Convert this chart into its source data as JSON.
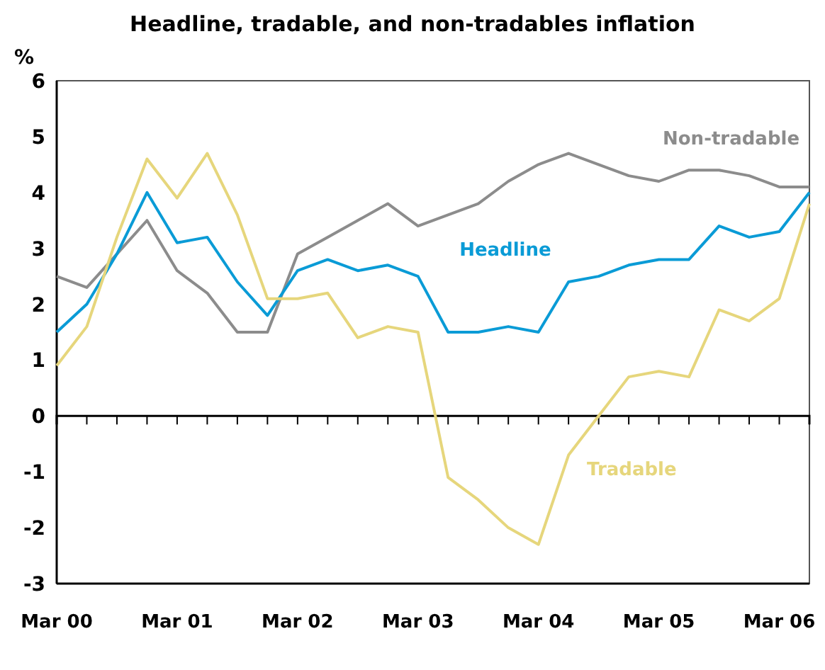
{
  "chart_data": {
    "type": "line",
    "title": "Headline, tradable, and non-tradables inflation",
    "ylabel": "%",
    "categories": [
      "Mar 00",
      null,
      null,
      null,
      "Mar 01",
      null,
      null,
      null,
      "Mar 02",
      null,
      null,
      null,
      "Mar 03",
      null,
      null,
      null,
      "Mar 04",
      null,
      null,
      null,
      "Mar 05",
      null,
      null,
      null,
      "Mar 06",
      null
    ],
    "series": [
      {
        "name": "Non-tradable",
        "color": "#8c8c8c",
        "values": [
          2.5,
          2.3,
          2.9,
          3.5,
          2.6,
          2.2,
          1.5,
          1.5,
          2.9,
          3.2,
          3.5,
          3.8,
          3.4,
          3.6,
          3.8,
          4.2,
          4.5,
          4.7,
          4.5,
          4.3,
          4.2,
          4.4,
          4.4,
          4.3,
          4.1,
          4.1
        ]
      },
      {
        "name": "Headline",
        "color": "#0a9bd6",
        "values": [
          1.5,
          2.0,
          2.9,
          4.0,
          3.1,
          3.2,
          2.4,
          1.8,
          2.6,
          2.8,
          2.6,
          2.7,
          2.5,
          1.5,
          1.5,
          1.6,
          1.5,
          2.4,
          2.5,
          2.7,
          2.8,
          2.8,
          3.4,
          3.2,
          3.3,
          4.0
        ]
      },
      {
        "name": "Tradable",
        "color": "#e6d67c",
        "values": [
          0.9,
          1.6,
          3.2,
          4.6,
          3.9,
          4.7,
          3.6,
          2.1,
          2.1,
          2.2,
          1.4,
          1.6,
          1.5,
          -1.1,
          -1.5,
          -2.0,
          -2.3,
          -0.7,
          0.0,
          0.7,
          0.8,
          0.7,
          1.9,
          1.7,
          2.1,
          3.8
        ]
      }
    ],
    "ylim": [
      -3,
      6
    ],
    "yticks": [
      -3,
      -2,
      -1,
      0,
      1,
      2,
      3,
      4,
      5,
      6
    ],
    "legend": false,
    "marker": "none",
    "line_style": "solid"
  }
}
